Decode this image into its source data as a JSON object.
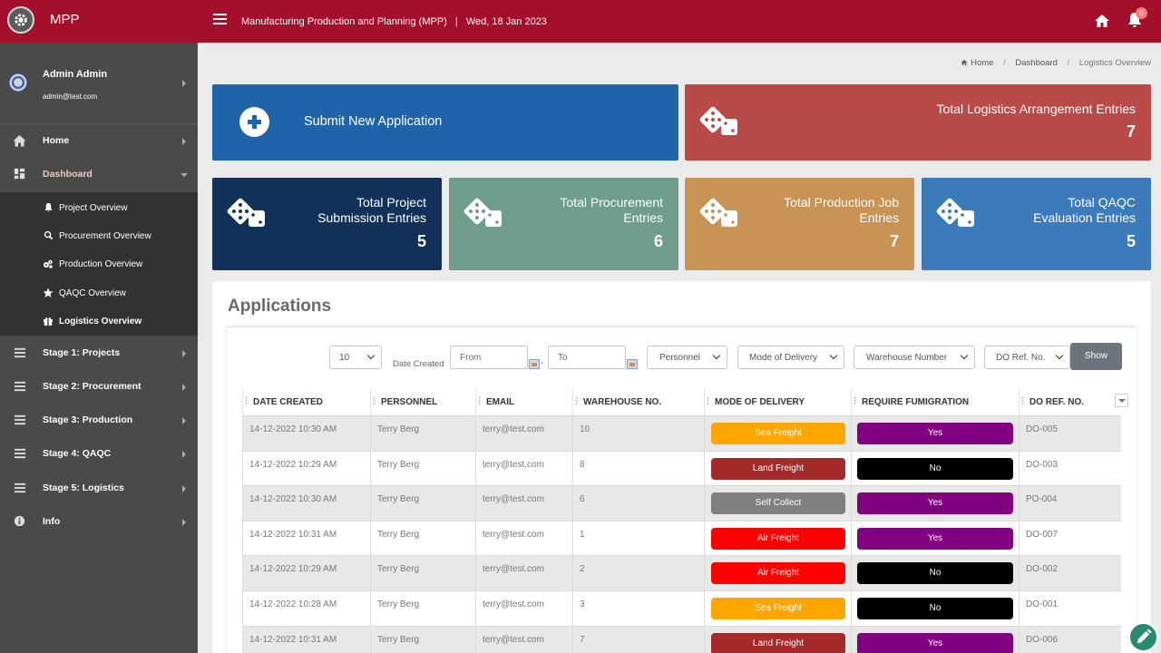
{
  "app": {
    "brand": "MPP",
    "title": "Manufacturing Production and Planning (MPP)",
    "title_sep": "|",
    "date": "Wed, 18 Jan 2023",
    "notification_count": "0",
    "accent": "#a4102b"
  },
  "user": {
    "name": "Admin Admin",
    "email": "admin@test.com"
  },
  "sidebar": {
    "items": [
      {
        "label": "Home",
        "icon": "home-icon"
      },
      {
        "label": "Dashboard",
        "icon": "dashboard-icon"
      }
    ],
    "submenu": [
      {
        "label": "Project Overview",
        "icon": "bell-icon"
      },
      {
        "label": "Procurement Overview",
        "icon": "search-icon"
      },
      {
        "label": "Production Overview",
        "icon": "cogs-icon"
      },
      {
        "label": "QAQC Overview",
        "icon": "star-icon"
      },
      {
        "label": "Logistics Overview",
        "icon": "gift-icon"
      }
    ],
    "stages": [
      {
        "label": "Stage 1: Projects"
      },
      {
        "label": "Stage 2: Procurement"
      },
      {
        "label": "Stage 3: Production"
      },
      {
        "label": "Stage 4: QAQC"
      },
      {
        "label": "Stage 5: Logistics"
      },
      {
        "label": "Info"
      }
    ]
  },
  "breadcrumb": {
    "home": "Home",
    "dashboard": "Dashboard",
    "current": "Logistics Overview"
  },
  "cards": {
    "submit": {
      "label": "Submit New Application"
    },
    "logistics": {
      "title": "Total Logistics Arrangement Entries",
      "value": "7"
    },
    "project": {
      "title_1": "Total Project",
      "title_2": "Submission Entries",
      "value": "5"
    },
    "procurement": {
      "title_1": "Total Procurement",
      "title_2": "Entries",
      "value": "6"
    },
    "production": {
      "title_1": "Total Production Job",
      "title_2": "Entries",
      "value": "7"
    },
    "qaqc": {
      "title_1": "Total QAQC",
      "title_2": "Evaluation Entries",
      "value": "5"
    }
  },
  "applications": {
    "heading": "Applications",
    "filters": {
      "page_size": "10",
      "date_label": "Date Created",
      "from_placeholder": "From",
      "to_placeholder": "To",
      "dash": "-",
      "personnel": "Personnel",
      "mode": "Mode of Delivery",
      "warehouse": "Warehouse Number",
      "do_ref": "DO Ref. No.",
      "show": "Show"
    },
    "columns": [
      "DATE CREATED",
      "PERSONNEL",
      "EMAIL",
      "WAREHOUSE NO.",
      "MODE OF DELIVERY",
      "REQUIRE FUMIGRATION",
      "DO REF. NO."
    ],
    "rows": [
      {
        "date": "14-12-2022 10:30 AM",
        "personnel": "Terry Berg",
        "email": "terry@test.com",
        "warehouse": "10",
        "mode": "Sea Freight",
        "mode_color": "#ffa500",
        "fumigation": "Yes",
        "fum_color": "#800080",
        "do_ref": "DO-005"
      },
      {
        "date": "14-12-2022 10:29 AM",
        "personnel": "Terry Berg",
        "email": "terry@test.com",
        "warehouse": "8",
        "mode": "Land Freight",
        "mode_color": "#a52a2a",
        "fumigation": "No",
        "fum_color": "#000000",
        "do_ref": "DO-003"
      },
      {
        "date": "14-12-2022 10:30 AM",
        "personnel": "Terry Berg",
        "email": "terry@test.com",
        "warehouse": "6",
        "mode": "Self Collect",
        "mode_color": "#808080",
        "fumigation": "Yes",
        "fum_color": "#800080",
        "do_ref": "PO-004"
      },
      {
        "date": "14-12-2022 10:31 AM",
        "personnel": "Terry Berg",
        "email": "terry@test.com",
        "warehouse": "1",
        "mode": "Air Freight",
        "mode_color": "#ff0000",
        "fumigation": "Yes",
        "fum_color": "#800080",
        "do_ref": "DO-007"
      },
      {
        "date": "14-12-2022 10:29 AM",
        "personnel": "Terry Berg",
        "email": "terry@test.com",
        "warehouse": "2",
        "mode": "Air Freight",
        "mode_color": "#ff0000",
        "fumigation": "No",
        "fum_color": "#000000",
        "do_ref": "DO-002"
      },
      {
        "date": "14-12-2022 10:28 AM",
        "personnel": "Terry Berg",
        "email": "terry@test.com",
        "warehouse": "3",
        "mode": "Sea Freight",
        "mode_color": "#ffa500",
        "fumigation": "No",
        "fum_color": "#000000",
        "do_ref": "DO-001"
      },
      {
        "date": "14-12-2022 10:31 AM",
        "personnel": "Terry Berg",
        "email": "terry@test.com",
        "warehouse": "7",
        "mode": "Land Freight",
        "mode_color": "#a52a2a",
        "fumigation": "Yes",
        "fum_color": "#800080",
        "do_ref": "DO-006"
      }
    ]
  }
}
